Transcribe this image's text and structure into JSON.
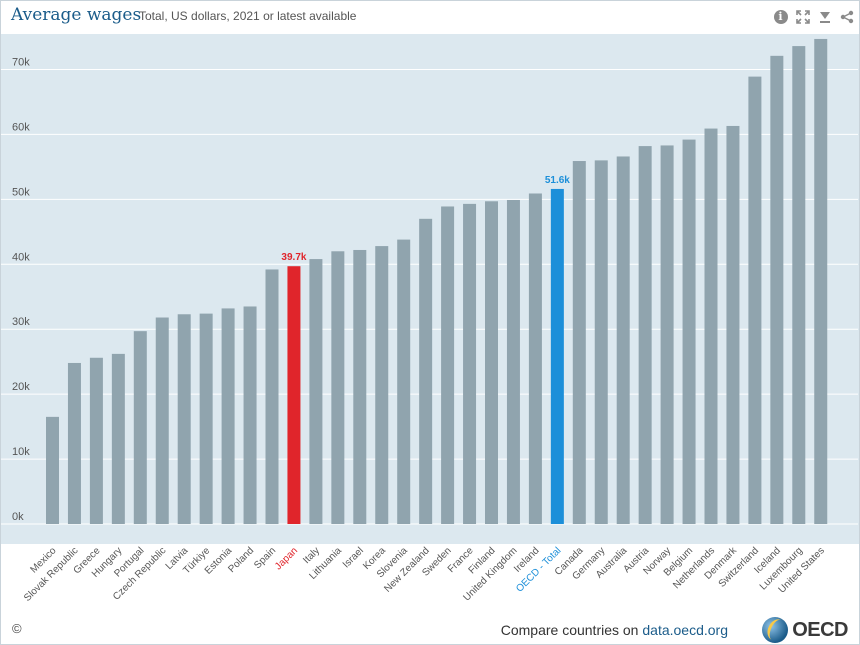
{
  "header": {
    "title": "Average wages",
    "subtitle": "Total, US dollars, 2021 or latest available"
  },
  "toolbar": {
    "icons": [
      "info-icon",
      "fullscreen-icon",
      "download-icon",
      "share-icon"
    ]
  },
  "footer": {
    "copyright": "©",
    "compare_text": "Compare countries on ",
    "compare_link": "data.oecd.org",
    "logo_text": "OECD"
  },
  "colors": {
    "bar": "#90a4ae",
    "highlight_japan": "#e0252b",
    "highlight_oecd": "#1c8fd9",
    "plot_background": "#dce8ef",
    "axis_text": "#555555"
  },
  "chart_data": {
    "type": "bar",
    "title": "Average wages",
    "subtitle": "Total, US dollars, 2021 or latest available",
    "ylim": [
      0,
      75000
    ],
    "yticks": [
      0,
      10000,
      20000,
      30000,
      40000,
      50000,
      60000,
      70000
    ],
    "ytick_labels": [
      "0k",
      "10k",
      "20k",
      "30k",
      "40k",
      "50k",
      "60k",
      "70k"
    ],
    "grid": true,
    "categories": [
      "Mexico",
      "Slovak Republic",
      "Greece",
      "Hungary",
      "Portugal",
      "Czech Republic",
      "Latvia",
      "Türkiye",
      "Estonia",
      "Poland",
      "Spain",
      "Japan",
      "Italy",
      "Lithuania",
      "Israel",
      "Korea",
      "Slovenia",
      "New Zealand",
      "Sweden",
      "France",
      "Finland",
      "United Kingdom",
      "Ireland",
      "OECD - Total",
      "Canada",
      "Germany",
      "Australia",
      "Austria",
      "Norway",
      "Belgium",
      "Netherlands",
      "Denmark",
      "Switzerland",
      "Iceland",
      "Luxembourg",
      "United States"
    ],
    "values": [
      16500,
      24800,
      25600,
      26200,
      29700,
      31800,
      32300,
      32400,
      33200,
      33500,
      39200,
      39700,
      40800,
      42000,
      42200,
      42800,
      43800,
      47000,
      48900,
      49300,
      49700,
      49900,
      50900,
      51600,
      55900,
      56000,
      56600,
      58200,
      58300,
      59200,
      60900,
      61300,
      68900,
      72100,
      73600,
      74700
    ],
    "highlights": [
      {
        "category": "Japan",
        "label": "39.7k",
        "color_key": "highlight_japan"
      },
      {
        "category": "OECD - Total",
        "label": "51.6k",
        "color_key": "highlight_oecd"
      }
    ]
  }
}
